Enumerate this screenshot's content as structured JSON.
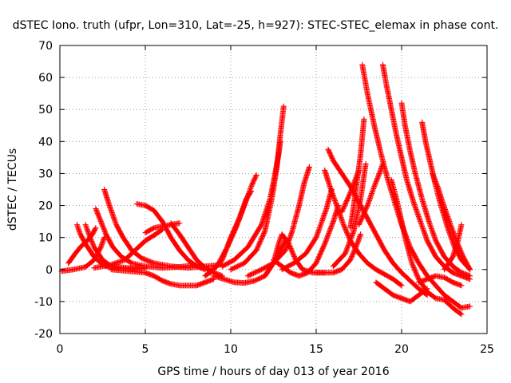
{
  "chart_data": {
    "type": "scatter",
    "title": "dSTEC Iono. truth (ufpr, Lon=310, Lat=-25, h=927): STEC-STEC_elemax in phase cont.",
    "xlabel": "GPS time / hours of day 013 of year 2016",
    "ylabel": "dSTEC  / TECUs",
    "xlim": [
      0,
      25
    ],
    "ylim": [
      -20,
      70
    ],
    "xticks": [
      0,
      5,
      10,
      15,
      20,
      25
    ],
    "yticks": [
      -20,
      -10,
      0,
      10,
      20,
      30,
      40,
      50,
      60,
      70
    ],
    "grid": true,
    "legend": "none",
    "marker": "+",
    "color": "#ff0000",
    "series": [
      {
        "points": [
          [
            0.1,
            -0.5
          ],
          [
            0.8,
            0
          ],
          [
            1.5,
            0.8
          ],
          [
            2.0,
            3
          ],
          [
            2.4,
            7
          ],
          [
            2.6,
            10
          ]
        ]
      },
      {
        "points": [
          [
            0.5,
            2
          ],
          [
            0.9,
            5
          ],
          [
            1.2,
            7
          ],
          [
            1.6,
            9
          ],
          [
            1.9,
            11
          ],
          [
            2.1,
            13
          ]
        ]
      },
      {
        "points": [
          [
            1.0,
            14
          ],
          [
            1.2,
            11
          ],
          [
            1.5,
            8
          ],
          [
            2.0,
            4
          ],
          [
            2.5,
            1.5
          ],
          [
            3.0,
            0.5
          ],
          [
            4.0,
            0.2
          ],
          [
            5.0,
            0.5
          ]
        ]
      },
      {
        "points": [
          [
            1.5,
            14
          ],
          [
            1.7,
            11
          ],
          [
            2.0,
            7
          ],
          [
            2.5,
            3
          ],
          [
            3.0,
            1
          ],
          [
            4.0,
            0.5
          ],
          [
            5.0,
            0.3
          ]
        ]
      },
      {
        "points": [
          [
            2.1,
            19
          ],
          [
            2.4,
            15
          ],
          [
            2.7,
            11
          ],
          [
            3.1,
            7
          ],
          [
            3.6,
            4
          ],
          [
            4.2,
            2
          ],
          [
            5.0,
            1
          ],
          [
            6.0,
            0.5
          ],
          [
            7.0,
            0.8
          ],
          [
            8.0,
            1.5
          ]
        ]
      },
      {
        "points": [
          [
            2.6,
            25
          ],
          [
            2.9,
            20
          ],
          [
            3.3,
            14
          ],
          [
            3.7,
            10
          ],
          [
            4.2,
            6
          ],
          [
            4.8,
            3.5
          ],
          [
            5.5,
            2
          ],
          [
            6.5,
            1
          ],
          [
            7.5,
            0.5
          ],
          [
            8.5,
            1
          ],
          [
            9.5,
            1.5
          ]
        ]
      },
      {
        "points": [
          [
            2.0,
            0.5
          ],
          [
            3.0,
            1.5
          ],
          [
            3.8,
            3
          ],
          [
            4.4,
            6
          ],
          [
            5.0,
            9
          ],
          [
            5.6,
            11
          ],
          [
            6.0,
            12.5
          ]
        ]
      },
      {
        "points": [
          [
            4.5,
            20.5
          ],
          [
            5.0,
            20
          ],
          [
            5.5,
            18.5
          ],
          [
            6.0,
            15
          ],
          [
            6.5,
            10
          ],
          [
            7.0,
            6
          ],
          [
            7.5,
            3
          ],
          [
            8.0,
            1
          ],
          [
            8.5,
            0
          ]
        ]
      },
      {
        "points": [
          [
            5.0,
            11.5
          ],
          [
            5.5,
            13
          ],
          [
            6.0,
            13.5
          ],
          [
            6.5,
            14
          ],
          [
            7.0,
            14.5
          ]
        ]
      },
      {
        "points": [
          [
            6.5,
            14.5
          ],
          [
            7.0,
            11
          ],
          [
            7.5,
            7
          ],
          [
            8.0,
            3
          ],
          [
            8.5,
            0.5
          ],
          [
            9.0,
            -1
          ],
          [
            9.5,
            -2
          ]
        ]
      },
      {
        "points": [
          [
            3.0,
            0
          ],
          [
            4.0,
            -0.5
          ],
          [
            5.0,
            -1
          ],
          [
            5.5,
            -2
          ],
          [
            6.0,
            -3.5
          ],
          [
            6.5,
            -4.5
          ],
          [
            7.0,
            -5
          ],
          [
            8.0,
            -5
          ],
          [
            8.5,
            -4
          ],
          [
            9.0,
            -3
          ]
        ]
      },
      {
        "points": [
          [
            8.5,
            -2
          ],
          [
            9.0,
            0
          ],
          [
            9.5,
            3
          ],
          [
            10.0,
            10
          ],
          [
            10.5,
            16
          ],
          [
            10.9,
            22
          ],
          [
            11.2,
            24.5
          ]
        ]
      },
      {
        "points": [
          [
            8.8,
            -1
          ],
          [
            9.3,
            2
          ],
          [
            9.8,
            7
          ],
          [
            10.3,
            13
          ],
          [
            10.8,
            20
          ],
          [
            11.2,
            26
          ],
          [
            11.5,
            29.5
          ]
        ]
      },
      {
        "points": [
          [
            9.0,
            -2
          ],
          [
            9.6,
            -3
          ],
          [
            10.2,
            -4
          ],
          [
            10.8,
            -4.2
          ],
          [
            11.4,
            -3.5
          ],
          [
            12.0,
            -2
          ],
          [
            12.5,
            2
          ],
          [
            12.9,
            6
          ],
          [
            13.2,
            9
          ]
        ]
      },
      {
        "points": [
          [
            9.5,
            1
          ],
          [
            10.2,
            3
          ],
          [
            11.0,
            7
          ],
          [
            11.8,
            14
          ],
          [
            12.3,
            22
          ],
          [
            12.6,
            30
          ],
          [
            12.8,
            36
          ],
          [
            12.9,
            40
          ]
        ]
      },
      {
        "points": [
          [
            10.0,
            0
          ],
          [
            10.8,
            2
          ],
          [
            11.5,
            6
          ],
          [
            12.0,
            12
          ],
          [
            12.4,
            22
          ],
          [
            12.7,
            32
          ],
          [
            12.9,
            42
          ],
          [
            13.1,
            51
          ]
        ]
      },
      {
        "points": [
          [
            11.0,
            -2
          ],
          [
            11.8,
            0
          ],
          [
            12.5,
            2
          ],
          [
            13.2,
            6
          ],
          [
            13.6,
            12
          ],
          [
            14.0,
            20
          ],
          [
            14.3,
            27
          ],
          [
            14.6,
            32
          ]
        ]
      },
      {
        "points": [
          [
            12.0,
            -2
          ],
          [
            12.5,
            2
          ],
          [
            12.8,
            8
          ],
          [
            13.0,
            11
          ],
          [
            13.4,
            8
          ],
          [
            13.8,
            3
          ],
          [
            14.2,
            0
          ],
          [
            14.8,
            -1
          ],
          [
            15.5,
            -1
          ]
        ]
      },
      {
        "points": [
          [
            13.0,
            0
          ],
          [
            13.7,
            2
          ],
          [
            14.4,
            5
          ],
          [
            15.0,
            10
          ],
          [
            15.6,
            19
          ],
          [
            15.9,
            25
          ]
        ]
      },
      {
        "points": [
          [
            12.5,
            3
          ],
          [
            13.0,
            1
          ],
          [
            13.5,
            -1
          ],
          [
            14.0,
            -2
          ],
          [
            14.5,
            -1
          ],
          [
            15.0,
            2
          ],
          [
            15.5,
            8
          ],
          [
            16.0,
            15
          ],
          [
            16.3,
            20
          ]
        ]
      },
      {
        "points": [
          [
            15.5,
            31
          ],
          [
            15.8,
            26
          ],
          [
            16.2,
            20
          ],
          [
            16.6,
            14
          ],
          [
            17.0,
            9
          ],
          [
            17.5,
            5
          ],
          [
            18.0,
            2
          ],
          [
            18.5,
            0
          ],
          [
            19.0,
            -1.5
          ],
          [
            19.5,
            -3
          ],
          [
            20.0,
            -5
          ]
        ]
      },
      {
        "points": [
          [
            15.7,
            37.5
          ],
          [
            16.0,
            34
          ],
          [
            16.5,
            30
          ],
          [
            17.0,
            26
          ],
          [
            17.5,
            21
          ],
          [
            18.0,
            16
          ],
          [
            18.5,
            11
          ],
          [
            19.0,
            6
          ],
          [
            19.5,
            2
          ],
          [
            20.0,
            -1
          ],
          [
            20.5,
            -3.5
          ],
          [
            21.0,
            -6
          ],
          [
            21.5,
            -8
          ]
        ]
      },
      {
        "points": [
          [
            15.0,
            -1
          ],
          [
            16.0,
            -1
          ],
          [
            16.5,
            0
          ],
          [
            17.0,
            3
          ],
          [
            17.4,
            8
          ],
          [
            17.6,
            11
          ]
        ]
      },
      {
        "points": [
          [
            16.0,
            1
          ],
          [
            16.7,
            5
          ],
          [
            17.2,
            12
          ],
          [
            17.6,
            22
          ],
          [
            17.9,
            33
          ]
        ]
      },
      {
        "points": [
          [
            17.0,
            13
          ],
          [
            17.2,
            20
          ],
          [
            17.4,
            28
          ],
          [
            17.6,
            36
          ],
          [
            17.8,
            47
          ]
        ]
      },
      {
        "points": [
          [
            16.5,
            18
          ],
          [
            17.0,
            24
          ],
          [
            17.5,
            31
          ]
        ]
      },
      {
        "points": [
          [
            17.7,
            64
          ],
          [
            18.0,
            55
          ],
          [
            18.4,
            45
          ],
          [
            18.8,
            36
          ],
          [
            19.2,
            28
          ],
          [
            19.6,
            21
          ],
          [
            20.0,
            14
          ],
          [
            20.5,
            7
          ],
          [
            21.0,
            2
          ],
          [
            21.5,
            -2
          ],
          [
            22.0,
            -5
          ],
          [
            22.5,
            -8
          ],
          [
            23.0,
            -10
          ],
          [
            23.5,
            -12
          ],
          [
            24.0,
            -11.5
          ]
        ]
      },
      {
        "points": [
          [
            18.9,
            64
          ],
          [
            19.1,
            58
          ],
          [
            19.4,
            50
          ],
          [
            19.7,
            42
          ],
          [
            20.0,
            35
          ],
          [
            20.3,
            28
          ],
          [
            20.7,
            21
          ],
          [
            21.1,
            15
          ],
          [
            21.5,
            9
          ],
          [
            22.0,
            4
          ],
          [
            22.5,
            1
          ],
          [
            23.0,
            -1
          ],
          [
            23.5,
            -2
          ],
          [
            24.0,
            -3
          ]
        ]
      },
      {
        "points": [
          [
            17.5,
            14
          ],
          [
            18.0,
            20
          ],
          [
            18.4,
            26
          ],
          [
            18.7,
            30
          ],
          [
            18.9,
            33
          ]
        ]
      },
      {
        "points": [
          [
            19.4,
            28
          ],
          [
            19.7,
            22
          ],
          [
            20.0,
            15
          ],
          [
            20.3,
            8
          ],
          [
            20.6,
            2
          ],
          [
            21.0,
            -3
          ],
          [
            21.5,
            -7
          ],
          [
            22.0,
            -9
          ],
          [
            22.5,
            -9.5
          ],
          [
            23.0,
            -12
          ],
          [
            23.5,
            -14
          ]
        ]
      },
      {
        "points": [
          [
            20.0,
            52
          ],
          [
            20.2,
            45
          ],
          [
            20.5,
            37
          ],
          [
            20.8,
            30
          ],
          [
            21.2,
            22
          ],
          [
            21.6,
            15
          ],
          [
            22.0,
            9
          ],
          [
            22.5,
            4
          ],
          [
            23.0,
            1
          ],
          [
            23.5,
            -1
          ],
          [
            24.0,
            -2
          ]
        ]
      },
      {
        "points": [
          [
            18.5,
            -4
          ],
          [
            19.0,
            -6
          ],
          [
            19.5,
            -8
          ],
          [
            20.0,
            -9
          ],
          [
            20.5,
            -10
          ],
          [
            21.0,
            -8
          ],
          [
            21.5,
            -6
          ]
        ]
      },
      {
        "points": [
          [
            21.2,
            46
          ],
          [
            21.4,
            40
          ],
          [
            21.7,
            33
          ],
          [
            22.0,
            26
          ],
          [
            22.3,
            20
          ],
          [
            22.7,
            13
          ],
          [
            23.1,
            7
          ],
          [
            23.5,
            3
          ],
          [
            24.0,
            0
          ]
        ]
      },
      {
        "points": [
          [
            21.8,
            30
          ],
          [
            22.1,
            26
          ],
          [
            22.4,
            21
          ],
          [
            22.8,
            15
          ],
          [
            23.2,
            9
          ],
          [
            23.6,
            4
          ],
          [
            24.0,
            0
          ]
        ]
      },
      {
        "points": [
          [
            22.5,
            0
          ],
          [
            23.0,
            4
          ],
          [
            23.3,
            9
          ],
          [
            23.5,
            14
          ]
        ]
      },
      {
        "points": [
          [
            21.0,
            -4
          ],
          [
            21.5,
            -3
          ],
          [
            22.0,
            -2
          ],
          [
            22.5,
            -2.5
          ],
          [
            23.0,
            -4
          ],
          [
            23.5,
            -5
          ]
        ]
      }
    ]
  }
}
